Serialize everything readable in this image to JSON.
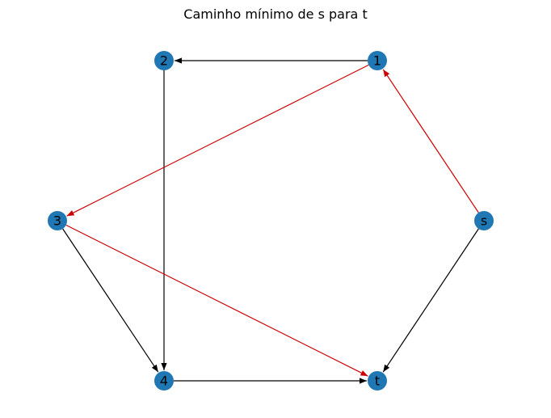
{
  "title": "Caminho mínimo de s para t",
  "colors": {
    "node_fill": "#1f77b4",
    "edge_default": "#000000",
    "edge_highlight": "#cc0000",
    "label": "#000000",
    "background": "#ffffff"
  },
  "graph": {
    "directed": true,
    "nodes": [
      {
        "id": "s",
        "label": "s"
      },
      {
        "id": "1",
        "label": "1"
      },
      {
        "id": "2",
        "label": "2"
      },
      {
        "id": "3",
        "label": "3"
      },
      {
        "id": "4",
        "label": "4"
      },
      {
        "id": "t",
        "label": "t"
      }
    ],
    "edges": [
      {
        "from": "1",
        "to": "2",
        "highlighted": false
      },
      {
        "from": "2",
        "to": "4",
        "highlighted": false
      },
      {
        "from": "1",
        "to": "3",
        "highlighted": true
      },
      {
        "from": "s",
        "to": "1",
        "highlighted": true
      },
      {
        "from": "3",
        "to": "4",
        "highlighted": false
      },
      {
        "from": "3",
        "to": "t",
        "highlighted": true
      },
      {
        "from": "s",
        "to": "t",
        "highlighted": false
      },
      {
        "from": "4",
        "to": "t",
        "highlighted": false
      }
    ],
    "shortest_path": [
      "s",
      "1",
      "3",
      "t"
    ]
  }
}
